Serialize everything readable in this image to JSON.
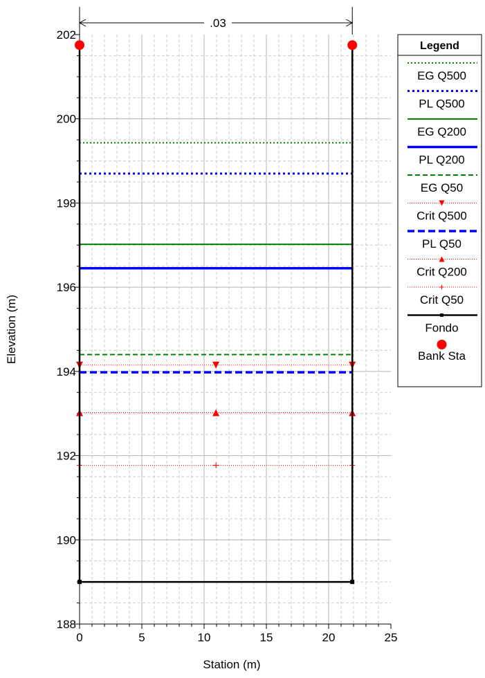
{
  "chart_data": {
    "type": "line",
    "xlabel": "Station (m)",
    "ylabel": "Elevation (m)",
    "xlim": [
      0,
      25
    ],
    "ylim": [
      188,
      202
    ],
    "x_ticks": [
      "0",
      "5",
      "10",
      "15",
      "20",
      "25"
    ],
    "y_ticks": [
      "188",
      "190",
      "192",
      "194",
      "196",
      "198",
      "200",
      "202"
    ],
    "grid": true,
    "top_annotation": ".03",
    "legend": {
      "title": "Legend",
      "position": "right",
      "entries": [
        "EG Q500",
        "PL Q500",
        "EG Q200",
        "PL Q200",
        "EG Q50",
        "Crit Q500",
        "PL Q50",
        "Crit Q200",
        "Crit Q50",
        "Fondo",
        "Bank Sta"
      ]
    },
    "series": [
      {
        "name": "EG Q500",
        "color": "#008000",
        "style": "dotted-thin",
        "x": [
          0,
          21.9
        ],
        "y": [
          199.43,
          199.43
        ]
      },
      {
        "name": "PL Q500",
        "color": "#0000ff",
        "style": "dotted-thick",
        "x": [
          0,
          21.9
        ],
        "y": [
          198.7,
          198.7
        ]
      },
      {
        "name": "EG Q200",
        "color": "#008000",
        "style": "solid",
        "x": [
          0,
          21.9
        ],
        "y": [
          197.02,
          197.02
        ]
      },
      {
        "name": "PL Q200",
        "color": "#0000ff",
        "style": "solid-thick",
        "x": [
          0,
          21.9
        ],
        "y": [
          196.45,
          196.45
        ]
      },
      {
        "name": "EG Q50",
        "color": "#008000",
        "style": "dashed",
        "x": [
          0,
          21.9
        ],
        "y": [
          194.4,
          194.4
        ]
      },
      {
        "name": "Crit Q500",
        "color": "#ff0000",
        "style": "dotted-tri-down",
        "x": [
          0,
          10.95,
          21.9
        ],
        "y": [
          194.15,
          194.15,
          194.15
        ]
      },
      {
        "name": "PL Q50",
        "color": "#0000ff",
        "style": "dashed-thick",
        "x": [
          0,
          21.9
        ],
        "y": [
          193.98,
          193.98
        ]
      },
      {
        "name": "Crit Q200",
        "color": "#ff0000",
        "style": "dotted-tri-up",
        "x": [
          0,
          10.95,
          21.9
        ],
        "y": [
          193.02,
          193.02,
          193.02
        ]
      },
      {
        "name": "Crit Q50",
        "color": "#ff0000",
        "style": "dotted-plus",
        "x": [
          0,
          10.95,
          21.9
        ],
        "y": [
          191.77,
          191.77,
          191.77
        ]
      },
      {
        "name": "Fondo",
        "color": "#000000",
        "style": "solid-square",
        "x": [
          0,
          0,
          21.9,
          21.9
        ],
        "y": [
          201.75,
          189.0,
          189.0,
          201.75
        ]
      },
      {
        "name": "Bank Sta",
        "color": "#ff0000",
        "style": "circle-marker",
        "x": [
          0,
          21.9
        ],
        "y": [
          201.75,
          201.75
        ]
      }
    ]
  }
}
